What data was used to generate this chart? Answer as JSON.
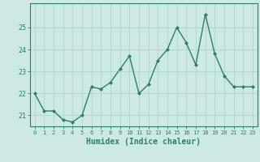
{
  "x": [
    0,
    1,
    2,
    3,
    4,
    5,
    6,
    7,
    8,
    9,
    10,
    11,
    12,
    13,
    14,
    15,
    16,
    17,
    18,
    19,
    20,
    21,
    22,
    23
  ],
  "y": [
    22.0,
    21.2,
    21.2,
    20.8,
    20.7,
    21.0,
    22.3,
    22.2,
    22.5,
    23.1,
    23.7,
    22.0,
    22.4,
    23.5,
    24.0,
    25.0,
    24.3,
    23.3,
    25.6,
    23.8,
    22.8,
    22.3,
    22.3,
    22.3
  ],
  "line_color": "#2e7d6e",
  "marker": "D",
  "marker_size": 2.0,
  "line_width": 1.0,
  "bg_color": "#cce9e5",
  "grid_color": "#b0d4cf",
  "tick_color": "#2e7d6e",
  "xlabel": "Humidex (Indice chaleur)",
  "xlabel_fontsize": 7,
  "xlabel_color": "#2e7d6e",
  "ylabel_ticks": [
    21,
    22,
    23,
    24,
    25
  ],
  "xlim": [
    -0.5,
    23.5
  ],
  "ylim": [
    20.5,
    26.1
  ]
}
